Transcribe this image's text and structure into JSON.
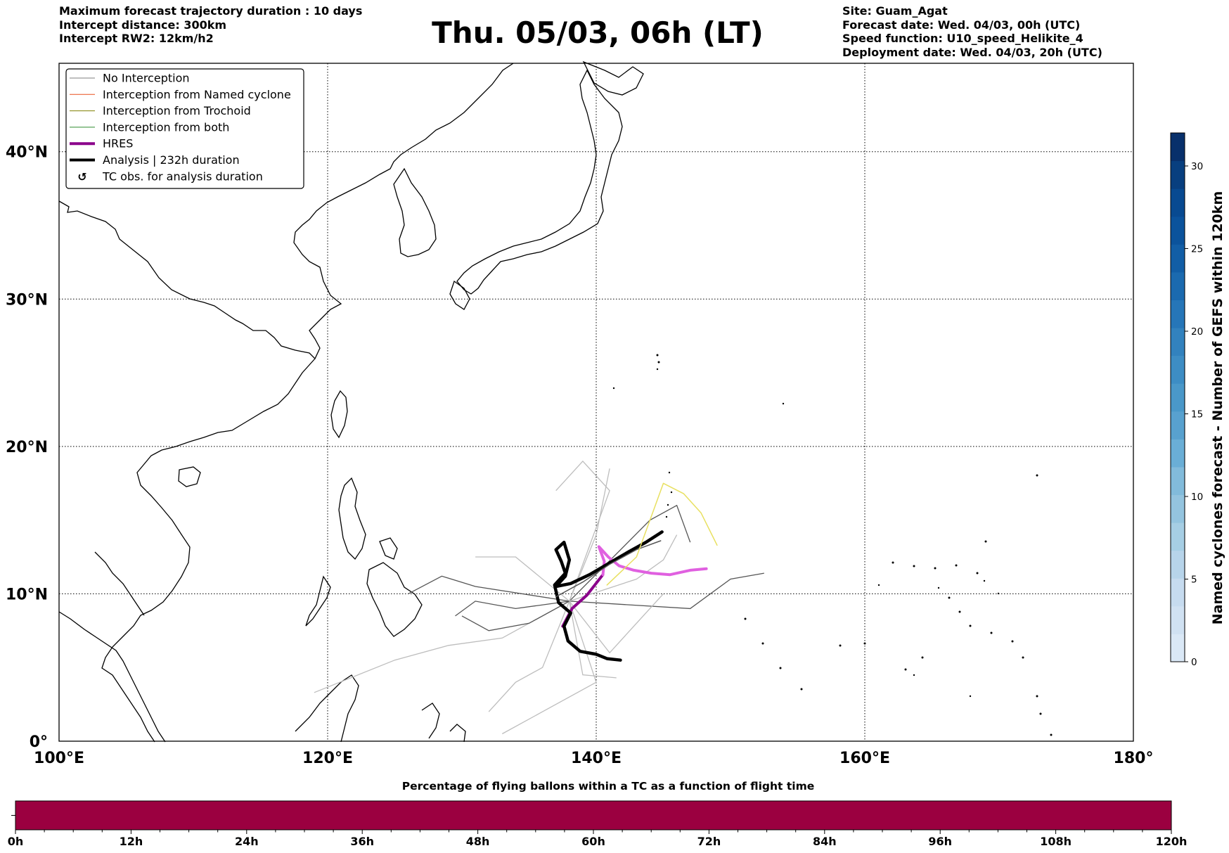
{
  "header": {
    "left": [
      "Maximum forecast trajectory duration : 10 days",
      "Intercept distance: 300km",
      "Intercept RW2: 12km/h2"
    ],
    "title": "Thu. 05/03, 06h (LT)",
    "right": [
      "Site: Guam_Agat",
      "Forecast date: Wed. 04/03, 00h (UTC)",
      "Speed function: U10_speed_Helikite_4",
      "Deployment date: Wed. 04/03, 20h (UTC)"
    ]
  },
  "legend": [
    {
      "label": "No Interception",
      "color": "#7f7f7f",
      "width": 1
    },
    {
      "label": "Interception from Named cyclone",
      "color": "#e8501e",
      "width": 1
    },
    {
      "label": "Interception from Trochoid",
      "color": "#7f7f00",
      "width": 1
    },
    {
      "label": "Interception from both",
      "color": "#2e8b2e",
      "width": 1
    },
    {
      "label": "HRES",
      "color": "#8b008b",
      "width": 4
    },
    {
      "label": "Analysis | 232h duration",
      "color": "#000000",
      "width": 4
    },
    {
      "label": "TC obs. for analysis duration",
      "color": "#000000",
      "symbol": "cyclone"
    }
  ],
  "chart_data": [
    {
      "type": "line",
      "title": "Thu. 05/03, 06h (LT)",
      "xlim": [
        100,
        180
      ],
      "ylim": [
        0,
        46
      ],
      "x_ticks": [
        100,
        120,
        140,
        160,
        180
      ],
      "x_tick_labels": [
        "100°E",
        "120°E",
        "140°E",
        "160°E",
        "180°"
      ],
      "y_ticks": [
        0,
        10,
        20,
        30,
        40
      ],
      "y_tick_labels": [
        "0°",
        "10°N",
        "20°N",
        "30°N",
        "40°N"
      ],
      "grid": true,
      "legend_position": "top-left",
      "series": [
        {
          "name": "HRES",
          "color": "#8b008b",
          "points": [
            [
              137.5,
              7.8
            ],
            [
              138.2,
              9
            ],
            [
              139.3,
              9.9
            ],
            [
              140.5,
              11.3
            ]
          ]
        },
        {
          "color": "#e060e0",
          "points": [
            [
              140.5,
              11.3
            ],
            [
              140.6,
              12.2
            ],
            [
              140.2,
              13.2
            ],
            [
              140.9,
              12.5
            ],
            [
              141.7,
              11.9
            ],
            [
              142.8,
              11.6
            ],
            [
              144.1,
              11.4
            ],
            [
              145.5,
              11.3
            ],
            [
              147,
              11.6
            ],
            [
              148.2,
              11.7
            ]
          ]
        },
        {
          "name": "Analysis | 232h duration",
          "color": "#000000",
          "points": [
            [
              141.8,
              5.5
            ],
            [
              140.8,
              5.6
            ],
            [
              140,
              5.9
            ],
            [
              138.8,
              6.1
            ],
            [
              137.9,
              6.8
            ],
            [
              137.6,
              7.8
            ],
            [
              138.1,
              8.7
            ],
            [
              137.2,
              9.4
            ],
            [
              136.9,
              10.6
            ],
            [
              137.7,
              11.4
            ],
            [
              137.4,
              12.2
            ],
            [
              137,
              13
            ],
            [
              137.6,
              13.5
            ],
            [
              138,
              12.3
            ],
            [
              137.7,
              11.2
            ],
            [
              137,
              10.5
            ],
            [
              138.1,
              10.7
            ],
            [
              139.5,
              11.3
            ],
            [
              141,
              12.1
            ],
            [
              142.5,
              12.9
            ],
            [
              143.7,
              13.5
            ],
            [
              144.9,
              14.2
            ]
          ]
        },
        {
          "name": "No Interception",
          "color": "#555555",
          "points": [
            [
              137,
              9.8
            ],
            [
              139,
              10.8
            ],
            [
              141,
              12
            ],
            [
              143,
              13
            ],
            [
              144.8,
              13.6
            ]
          ]
        },
        {
          "color": "#e8e060",
          "points": [
            [
              140.8,
              10.6
            ],
            [
              143,
              12.5
            ],
            [
              144,
              15
            ],
            [
              145,
              17.5
            ],
            [
              146.5,
              16.8
            ],
            [
              147.8,
              15.5
            ],
            [
              149,
              13.3
            ]
          ]
        }
      ]
    },
    {
      "type": "heatmap",
      "title": "Percentage of flying ballons within a TC as a function of flight time",
      "x_ticks": [
        0,
        12,
        24,
        36,
        48,
        60,
        72,
        84,
        96,
        108,
        120
      ],
      "x_tick_labels": [
        "0h",
        "12h",
        "24h",
        "36h",
        "48h",
        "60h",
        "72h",
        "84h",
        "96h",
        "108h",
        "120h"
      ],
      "xlim": [
        0,
        120
      ],
      "color": "#9b0040"
    },
    {
      "type": "heatmap",
      "title": "Named cyclones forecast - Number of GEFS within 120km",
      "ylim": [
        0,
        32
      ],
      "y_ticks": [
        0,
        5,
        10,
        15,
        20,
        25,
        30
      ],
      "y_tick_labels": [
        "0",
        "5",
        "10",
        "15",
        "20",
        "25",
        "30"
      ],
      "colors": [
        "#dae8f6",
        "#d0e1f2",
        "#c6dbef",
        "#b7d4ea",
        "#a6cee4",
        "#94c4df",
        "#82bbdb",
        "#6aaed6",
        "#58a1cf",
        "#4a98c9",
        "#3d8dc4",
        "#3282be",
        "#2676b8",
        "#1b6aaf",
        "#125ea6",
        "#0b539c",
        "#084a91",
        "#083f7f",
        "#08306b"
      ]
    }
  ]
}
